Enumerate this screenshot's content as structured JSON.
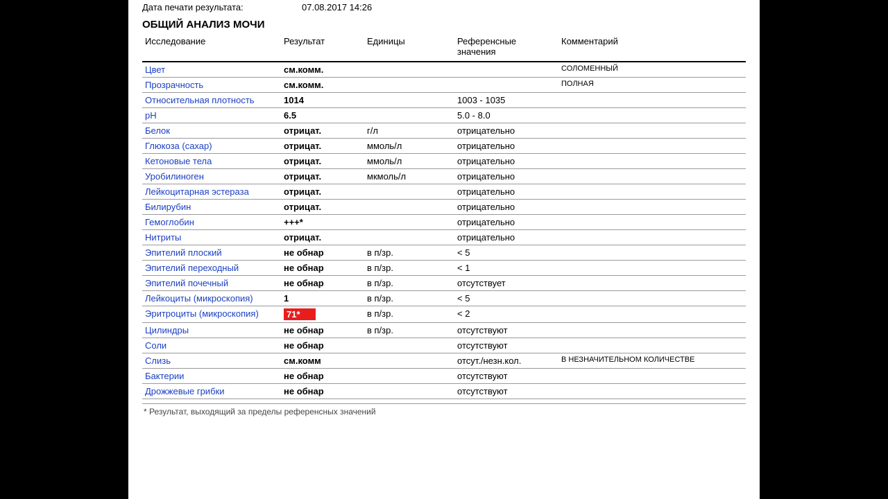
{
  "meta": {
    "partial_line_label": "",
    "partial_line_value": "",
    "print_date_label": "Дата печати результата:",
    "print_date_value": "07.08.2017 14:26"
  },
  "section_title": "ОБЩИЙ АНАЛИЗ МОЧИ",
  "headers": {
    "test": "Исследование",
    "result": "Результат",
    "units": "Единицы",
    "ref": "Референсные значения",
    "comment": "Комментарий"
  },
  "rows": [
    {
      "test": "Цвет",
      "result": "см.комм.",
      "units": "",
      "ref": "",
      "comment": "СОЛОМЕННЫЙ"
    },
    {
      "test": "Прозрачность",
      "result": "см.комм.",
      "units": "",
      "ref": "",
      "comment": "ПОЛНАЯ"
    },
    {
      "test": "Относительная плотность",
      "result": "1014",
      "units": "",
      "ref": "1003 - 1035",
      "comment": ""
    },
    {
      "test": "pH",
      "result": "6.5",
      "units": "",
      "ref": "5.0 - 8.0",
      "comment": ""
    },
    {
      "test": "Белок",
      "result": "отрицат.",
      "units": "г/л",
      "ref": "отрицательно",
      "comment": ""
    },
    {
      "test": "Глюкоза (сахар)",
      "result": "отрицат.",
      "units": "ммоль/л",
      "ref": "отрицательно",
      "comment": ""
    },
    {
      "test": "Кетоновые тела",
      "result": "отрицат.",
      "units": "ммоль/л",
      "ref": "отрицательно",
      "comment": ""
    },
    {
      "test": "Уробилиноген",
      "result": "отрицат.",
      "units": "мкмоль/л",
      "ref": "отрицательно",
      "comment": ""
    },
    {
      "test": "Лейкоцитарная эстераза",
      "result": "отрицат.",
      "units": "",
      "ref": "отрицательно",
      "comment": ""
    },
    {
      "test": "Билирубин",
      "result": "отрицат.",
      "units": "",
      "ref": "отрицательно",
      "comment": ""
    },
    {
      "test": "Гемоглобин",
      "result": "+++*",
      "units": "",
      "ref": "отрицательно",
      "comment": ""
    },
    {
      "test": "Нитриты",
      "result": "отрицат.",
      "units": "",
      "ref": "отрицательно",
      "comment": ""
    },
    {
      "test": "Эпителий плоский",
      "result": "не обнар",
      "units": "в п/зр.",
      "ref": "< 5",
      "comment": ""
    },
    {
      "test": "Эпителий переходный",
      "result": "не обнар",
      "units": "в п/зр.",
      "ref": "< 1",
      "comment": ""
    },
    {
      "test": "Эпителий почечный",
      "result": "не обнар",
      "units": "в п/зр.",
      "ref": "отсутствует",
      "comment": ""
    },
    {
      "test": "Лейкоциты (микроскопия)",
      "result": "1",
      "units": "в п/зр.",
      "ref": "< 5",
      "comment": ""
    },
    {
      "test": "Эритроциты (микроскопия)",
      "result": "71*",
      "units": "в п/зр.",
      "ref": "< 2",
      "comment": "",
      "highlight": true
    },
    {
      "test": "Цилиндры",
      "result": "не обнар",
      "units": "в п/зр.",
      "ref": "отсутствуют",
      "comment": ""
    },
    {
      "test": "Соли",
      "result": "не обнар",
      "units": "",
      "ref": "отсутствуют",
      "comment": ""
    },
    {
      "test": "Слизь",
      "result": "см.комм",
      "units": "",
      "ref": "отсут./незн.кол.",
      "comment": "В НЕЗНАЧИТЕЛЬНОМ КОЛИЧЕСТВЕ"
    },
    {
      "test": "Бактерии",
      "result": "не обнар",
      "units": "",
      "ref": "отсутствуют",
      "comment": ""
    },
    {
      "test": "Дрожжевые грибки",
      "result": "не обнар",
      "units": "",
      "ref": "отсутствуют",
      "comment": ""
    }
  ],
  "footnote": "* Результат, выходящий за пределы референсных значений",
  "colors": {
    "link": "#1a3fc2",
    "highlight_bg": "#e81e1e",
    "highlight_fg": "#ffffff",
    "border": "#9a9a9a",
    "header_border": "#000000",
    "bg": "#ffffff",
    "outer_bg": "#000000"
  }
}
